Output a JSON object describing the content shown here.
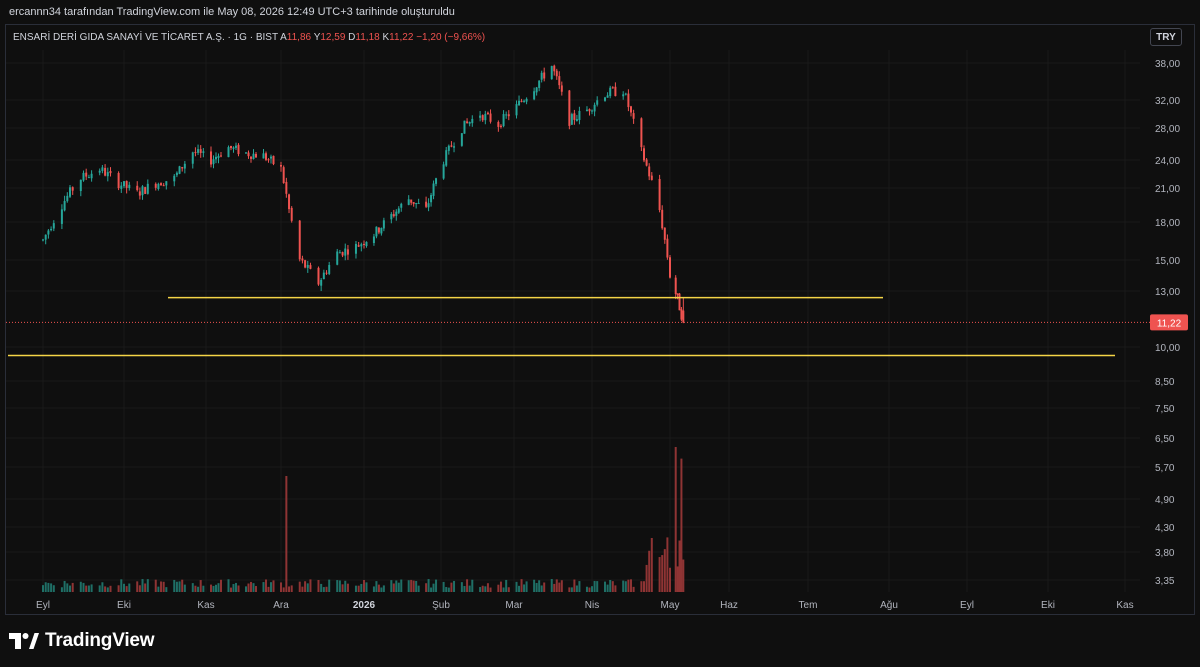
{
  "header": {
    "attribution": "ercannn34 tarafından TradingView.com ile May 08, 2026 12:49 UTC+3 tarihinde oluşturuldu"
  },
  "legend": {
    "symbol": "ENSARİ DERİ GIDA SANAYİ VE TİCARET A.Ş. · 1G · BIST",
    "open_label": "A",
    "open": "11,86",
    "high_label": "Y",
    "high": "12,59",
    "low_label": "D",
    "low": "11,18",
    "close_label": "K",
    "close": "11,22",
    "change": "−1,20 (−9,66%)"
  },
  "currency_button": "TRY",
  "brand": "TradingView",
  "colors": {
    "up": "#26a69a",
    "down": "#ef5350",
    "hline": "#f5d547",
    "bg": "#0f0f0f",
    "text": "#d1d4dc"
  },
  "chart_data": {
    "type": "candlestick",
    "symbol": "ENSARİ DERİ GIDA SANAYİ VE TİCARET A.Ş.",
    "timeframe": "1G",
    "exchange": "BIST",
    "price_axis": {
      "scale": "log",
      "ticks": [
        "38,00",
        "32,00",
        "28,00",
        "24,00",
        "21,00",
        "18,00",
        "15,00",
        "13,00",
        "10,00",
        "8,50",
        "7,50",
        "6,50",
        "5,70",
        "4,90",
        "4,30",
        "3,80",
        "3,35"
      ],
      "last_price_label": "11,22"
    },
    "time_axis": {
      "labels": [
        "Eyl",
        "Eki",
        "Kas",
        "Ara",
        "2026",
        "Şub",
        "Mar",
        "Nis",
        "May",
        "Haz",
        "Tem",
        "Ağu",
        "Eyl",
        "Eki",
        "Kas"
      ]
    },
    "horizontal_lines": [
      {
        "price": 12.6,
        "color": "#f5d547"
      },
      {
        "price": 9.6,
        "color": "#f5d547"
      }
    ],
    "price_path": [
      [
        "2025-09-01",
        16.5
      ],
      [
        "2025-09-08",
        19.5
      ],
      [
        "2025-09-15",
        22.0
      ],
      [
        "2025-09-22",
        23.0
      ],
      [
        "2025-09-29",
        21.5
      ],
      [
        "2025-10-06",
        20.5
      ],
      [
        "2025-10-13",
        21.5
      ],
      [
        "2025-10-20",
        22.0
      ],
      [
        "2025-10-27",
        25.0
      ],
      [
        "2025-11-03",
        24.0
      ],
      [
        "2025-11-10",
        25.5
      ],
      [
        "2025-11-17",
        24.8
      ],
      [
        "2025-11-24",
        24.5
      ],
      [
        "2025-12-01",
        23.0
      ],
      [
        "2025-12-04",
        19.0
      ],
      [
        "2025-12-08",
        15.0
      ],
      [
        "2025-12-15",
        13.5
      ],
      [
        "2025-12-22",
        15.5
      ],
      [
        "2025-12-29",
        16.0
      ],
      [
        "2026-01-05",
        17.0
      ],
      [
        "2026-01-12",
        18.5
      ],
      [
        "2026-01-19",
        20.0
      ],
      [
        "2026-01-26",
        19.0
      ],
      [
        "2026-02-02",
        24.0
      ],
      [
        "2026-02-09",
        28.0
      ],
      [
        "2026-02-16",
        30.0
      ],
      [
        "2026-02-23",
        28.5
      ],
      [
        "2026-03-02",
        31.0
      ],
      [
        "2026-03-09",
        34.0
      ],
      [
        "2026-03-16",
        37.5
      ],
      [
        "2026-03-23",
        29.0
      ],
      [
        "2026-03-30",
        30.5
      ],
      [
        "2026-04-06",
        33.0
      ],
      [
        "2026-04-13",
        33.5
      ],
      [
        "2026-04-20",
        25.0
      ],
      [
        "2026-04-27",
        19.0
      ],
      [
        "2026-05-01",
        14.0
      ],
      [
        "2026-05-05",
        12.5
      ],
      [
        "2026-05-08",
        11.22
      ]
    ],
    "volume_spikes": [
      {
        "date": "2025-12-03",
        "relative": 0.8
      },
      {
        "date": "2026-05-04",
        "relative": 1.0
      },
      {
        "date": "2026-05-07",
        "relative": 0.92
      }
    ]
  }
}
